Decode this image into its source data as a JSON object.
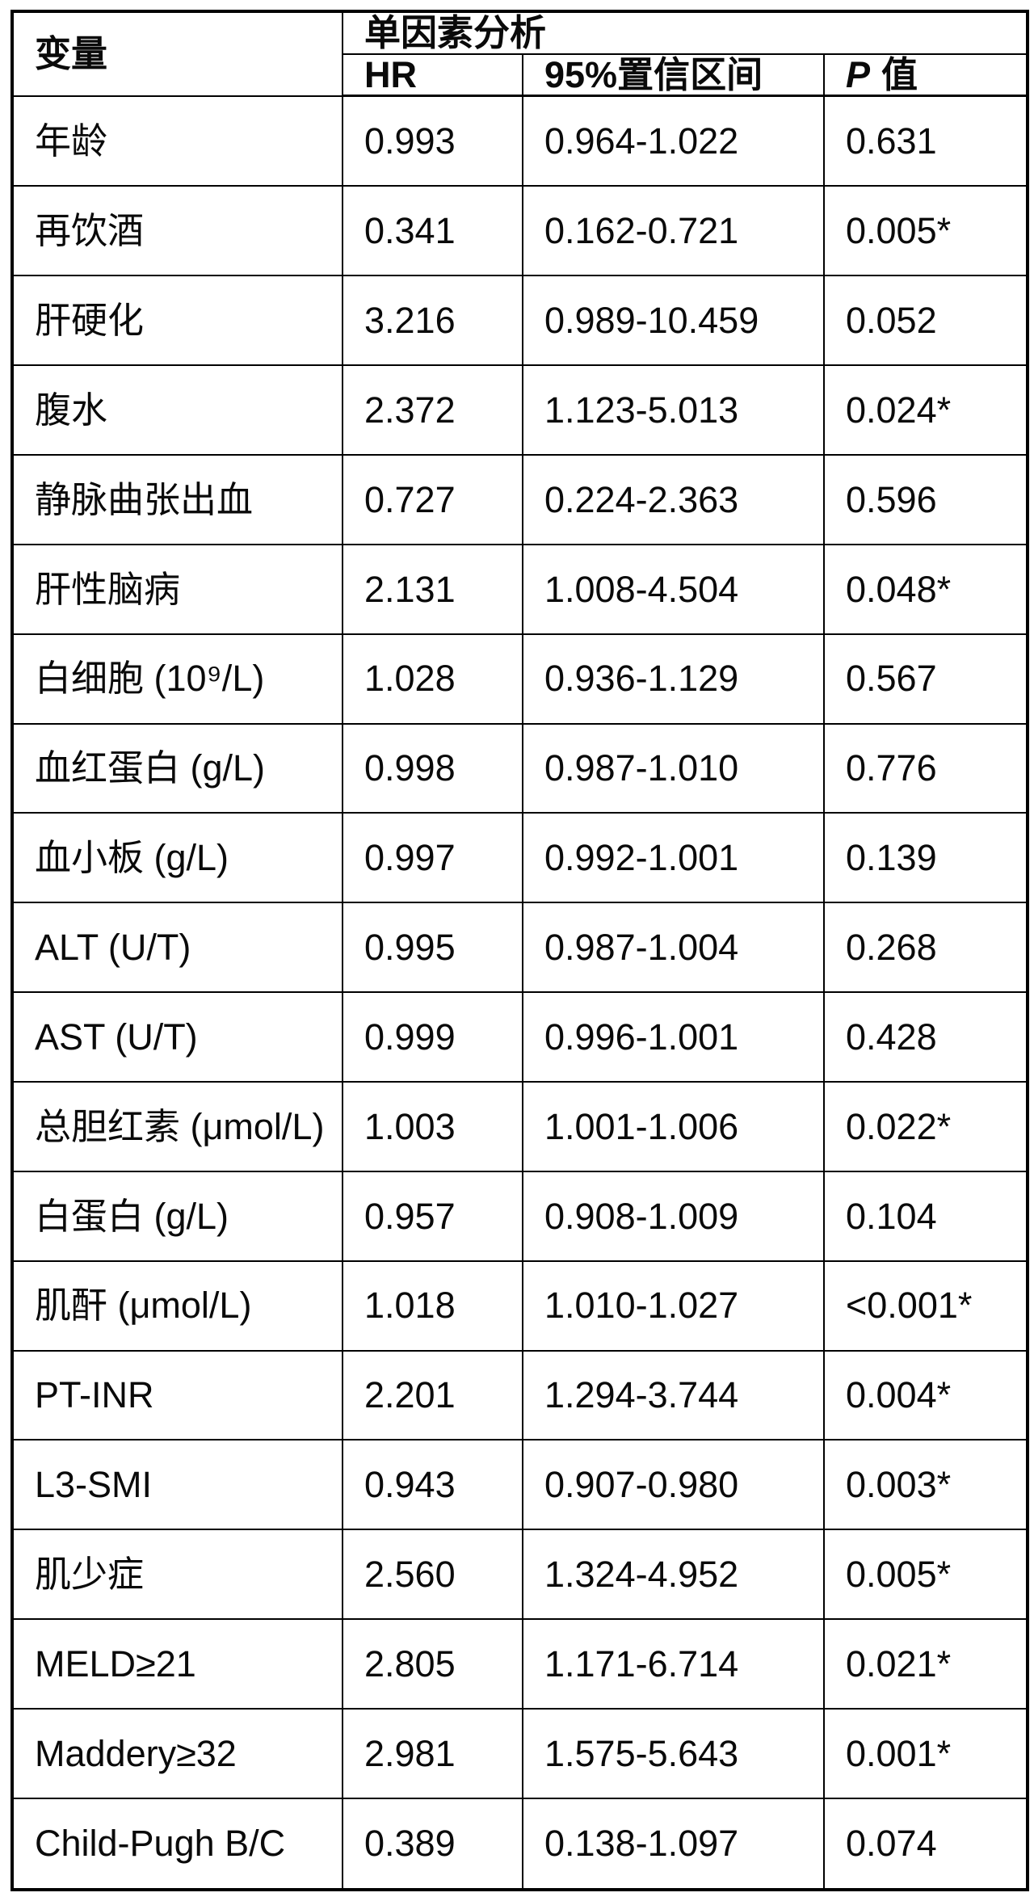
{
  "table": {
    "header": {
      "variable": "变量",
      "group": "单因素分析",
      "hr": "HR",
      "ci": "95%置信区间",
      "p_symbol": "P",
      "p_word": "值"
    },
    "rows": [
      {
        "variable": "年龄",
        "hr": "0.993",
        "ci": "0.964-1.022",
        "p": "0.631"
      },
      {
        "variable": "再饮酒",
        "hr": "0.341",
        "ci": "0.162-0.721",
        "p": "0.005*"
      },
      {
        "variable": "肝硬化",
        "hr": "3.216",
        "ci": "0.989-10.459",
        "p": "0.052"
      },
      {
        "variable": "腹水",
        "hr": "2.372",
        "ci": "1.123-5.013",
        "p": "0.024*"
      },
      {
        "variable": "静脉曲张出血",
        "hr": "0.727",
        "ci": "0.224-2.363",
        "p": "0.596"
      },
      {
        "variable": "肝性脑病",
        "hr": "2.131",
        "ci": "1.008-4.504",
        "p": "0.048*"
      },
      {
        "variable": "白细胞 (10⁹/L)",
        "hr": "1.028",
        "ci": "0.936-1.129",
        "p": "0.567"
      },
      {
        "variable": "血红蛋白 (g/L)",
        "hr": "0.998",
        "ci": "0.987-1.010",
        "p": "0.776"
      },
      {
        "variable": "血小板 (g/L)",
        "hr": "0.997",
        "ci": "0.992-1.001",
        "p": "0.139"
      },
      {
        "variable": "ALT (U/T)",
        "hr": "0.995",
        "ci": "0.987-1.004",
        "p": "0.268"
      },
      {
        "variable": "AST (U/T)",
        "hr": "0.999",
        "ci": "0.996-1.001",
        "p": "0.428"
      },
      {
        "variable": "总胆红素 (μmol/L)",
        "hr": "1.003",
        "ci": "1.001-1.006",
        "p": "0.022*"
      },
      {
        "variable": "白蛋白 (g/L)",
        "hr": "0.957",
        "ci": "0.908-1.009",
        "p": "0.104"
      },
      {
        "variable": "肌酐 (μmol/L)",
        "hr": "1.018",
        "ci": "1.010-1.027",
        "p": "<0.001*"
      },
      {
        "variable": "PT-INR",
        "hr": "2.201",
        "ci": "1.294-3.744",
        "p": "0.004*"
      },
      {
        "variable": "L3-SMI",
        "hr": "0.943",
        "ci": "0.907-0.980",
        "p": "0.003*"
      },
      {
        "variable": "肌少症",
        "hr": "2.560",
        "ci": "1.324-4.952",
        "p": "0.005*"
      },
      {
        "variable": "MELD≥21",
        "hr": "2.805",
        "ci": "1.171-6.714",
        "p": "0.021*"
      },
      {
        "variable": "Maddery≥32",
        "hr": "2.981",
        "ci": "1.575-5.643",
        "p": "0.001*"
      },
      {
        "variable": "Child-Pugh B/C",
        "hr": "0.389",
        "ci": "0.138-1.097",
        "p": "0.074"
      }
    ]
  }
}
